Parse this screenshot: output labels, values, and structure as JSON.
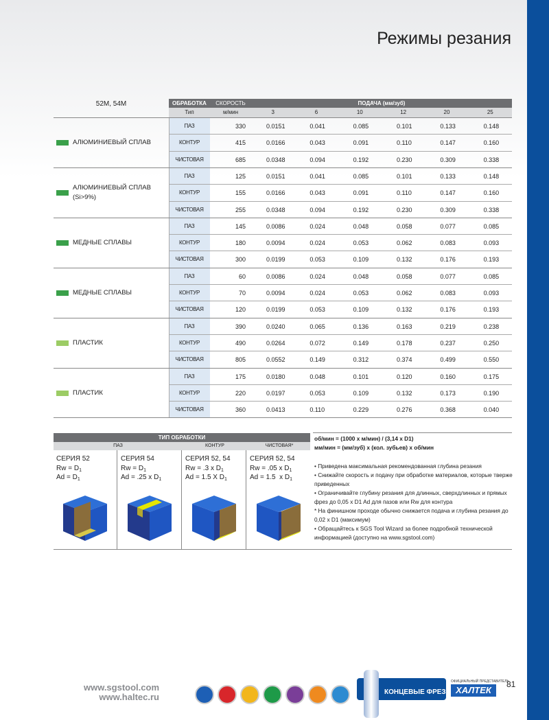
{
  "header": {
    "title": "Режимы резания"
  },
  "table": {
    "series_label": "52M, 54M",
    "head": {
      "operation": "ОБРАБОТКА",
      "speed": "СКОРОСТЬ",
      "feed": "ПОДАЧА (мм/зуб)"
    },
    "subhead": {
      "type": "Тип",
      "unit": "м/мин",
      "diameters": [
        3,
        6,
        10,
        12,
        20,
        25
      ]
    },
    "groups": [
      {
        "material": [
          "АЛЮМИНИЕВЫЙ СПЛАВ"
        ],
        "color": "#3aa04a",
        "rows": [
          {
            "type": "ПАЗ",
            "speed": 330,
            "feeds": [
              "0.0151",
              "0.041",
              "0.085",
              "0.101",
              "0.133",
              "0.148"
            ]
          },
          {
            "type": "КОНТУР",
            "speed": 415,
            "feeds": [
              "0.0166",
              "0.043",
              "0.091",
              "0.110",
              "0.147",
              "0.160"
            ]
          },
          {
            "type": "ЧИСТОВАЯ",
            "speed": 685,
            "feeds": [
              "0.0348",
              "0.094",
              "0.192",
              "0.230",
              "0.309",
              "0.338"
            ]
          }
        ]
      },
      {
        "material": [
          "АЛЮМИНИЕВЫЙ СПЛАВ",
          "(Si>9%)"
        ],
        "color": "#3aa04a",
        "rows": [
          {
            "type": "ПАЗ",
            "speed": 125,
            "feeds": [
              "0.0151",
              "0.041",
              "0.085",
              "0.101",
              "0.133",
              "0.148"
            ]
          },
          {
            "type": "КОНТУР",
            "speed": 155,
            "feeds": [
              "0.0166",
              "0.043",
              "0.091",
              "0.110",
              "0.147",
              "0.160"
            ]
          },
          {
            "type": "ЧИСТОВАЯ",
            "speed": 255,
            "feeds": [
              "0.0348",
              "0.094",
              "0.192",
              "0.230",
              "0.309",
              "0.338"
            ]
          }
        ]
      },
      {
        "material": [
          "МЕДНЫЕ СПЛАВЫ"
        ],
        "color": "#3aa04a",
        "rows": [
          {
            "type": "ПАЗ",
            "speed": 145,
            "feeds": [
              "0.0086",
              "0.024",
              "0.048",
              "0.058",
              "0.077",
              "0.085"
            ]
          },
          {
            "type": "КОНТУР",
            "speed": 180,
            "feeds": [
              "0.0094",
              "0.024",
              "0.053",
              "0.062",
              "0.083",
              "0.093"
            ]
          },
          {
            "type": "ЧИСТОВАЯ",
            "speed": 300,
            "feeds": [
              "0.0199",
              "0.053",
              "0.109",
              "0.132",
              "0.176",
              "0.193"
            ]
          }
        ]
      },
      {
        "material": [
          "МЕДНЫЕ СПЛАВЫ"
        ],
        "color": "#3aa04a",
        "rows": [
          {
            "type": "ПАЗ",
            "speed": 60,
            "feeds": [
              "0.0086",
              "0.024",
              "0.048",
              "0.058",
              "0.077",
              "0.085"
            ]
          },
          {
            "type": "КОНТУР",
            "speed": 70,
            "feeds": [
              "0.0094",
              "0.024",
              "0.053",
              "0.062",
              "0.083",
              "0.093"
            ]
          },
          {
            "type": "ЧИСТОВАЯ",
            "speed": 120,
            "feeds": [
              "0.0199",
              "0.053",
              "0.109",
              "0.132",
              "0.176",
              "0.193"
            ]
          }
        ]
      },
      {
        "material": [
          "ПЛАСТИК"
        ],
        "color": "#9ccc65",
        "rows": [
          {
            "type": "ПАЗ",
            "speed": 390,
            "feeds": [
              "0.0240",
              "0.065",
              "0.136",
              "0.163",
              "0.219",
              "0.238"
            ]
          },
          {
            "type": "КОНТУР",
            "speed": 490,
            "feeds": [
              "0.0264",
              "0.072",
              "0.149",
              "0.178",
              "0.237",
              "0.250"
            ]
          },
          {
            "type": "ЧИСТОВАЯ",
            "speed": 805,
            "feeds": [
              "0.0552",
              "0.149",
              "0.312",
              "0.374",
              "0.499",
              "0.550"
            ]
          }
        ]
      },
      {
        "material": [
          "ПЛАСТИК"
        ],
        "color": "#9ccc65",
        "rows": [
          {
            "type": "ПАЗ",
            "speed": 175,
            "feeds": [
              "0.0180",
              "0.048",
              "0.101",
              "0.120",
              "0.160",
              "0.175"
            ]
          },
          {
            "type": "КОНТУР",
            "speed": 220,
            "feeds": [
              "0.0197",
              "0.053",
              "0.109",
              "0.132",
              "0.173",
              "0.190"
            ]
          },
          {
            "type": "ЧИСТОВАЯ",
            "speed": 360,
            "feeds": [
              "0.0413",
              "0.110",
              "0.229",
              "0.276",
              "0.368",
              "0.040"
            ]
          }
        ]
      }
    ]
  },
  "machining": {
    "title": "ТИП ОБРАБОТКИ",
    "columns": [
      "ПАЗ",
      "КОНТУР",
      "ЧИСТОВАЯ*"
    ],
    "cards": [
      {
        "series": "СЕРИЯ 52",
        "lines": [
          [
            {
              "text": "Rw = D"
            },
            {
              "sub": "1"
            }
          ],
          [
            {
              "text": "Ad = D"
            },
            {
              "sub": "1"
            }
          ]
        ]
      },
      {
        "series": "СЕРИЯ 54",
        "lines": [
          [
            {
              "text": "Rw = D"
            },
            {
              "sub": "1"
            }
          ],
          [
            {
              "text": "Ad = .25 x D"
            },
            {
              "sub": "1"
            }
          ]
        ]
      },
      {
        "series": "СЕРИЯ 52, 54",
        "lines": [
          [
            {
              "text": "Rw = .3 x D"
            },
            {
              "sub": "1"
            }
          ],
          [
            {
              "text": "Ad = 1.5 X D"
            },
            {
              "sub": "1"
            }
          ]
        ]
      },
      {
        "series": "СЕРИЯ 52, 54",
        "lines": [
          [
            {
              "text": "Rw = .05 x D"
            },
            {
              "sub": "1"
            }
          ],
          [
            {
              "text": "Ad = 1.5  x D"
            },
            {
              "sub": "1"
            }
          ]
        ]
      }
    ]
  },
  "notes": {
    "formulas": [
      "об/мин = (1000 x м/мин) / (3,14 x D1)",
      "мм/мин = (мм/зуб) x (кол. зубьев) x об/мин"
    ],
    "items": [
      "• Приведена максимальная рекомендованная глубина резания",
      "• Снижайте скорость и подачу при обработке материалов, которые тверже приведенных",
      "• Ограничивайте глубину резания для длинных, сверхдлинных и прямых фрез до 0,05 x D1 Ad для пазов или Rw для контура",
      "* На финишном проходе обычно снижается подача и глубина резания до 0,02 x D1 (максимум)",
      "• Обращайтесь к SGS Tool Wizard за более подробной технической информацией (доступно на www.sgstool.com)"
    ]
  },
  "footer": {
    "links": [
      "www.sgstool.com",
      "www.haltec.ru"
    ],
    "product": "КОНЦЕВЫЕ ФРЕЗЫ",
    "rep_caption": "ОФИЦИАЛЬНЫЙ ПРЕДСТАВИТЕЛЬ",
    "brand": "ХАЛТЕК",
    "page": "81"
  }
}
